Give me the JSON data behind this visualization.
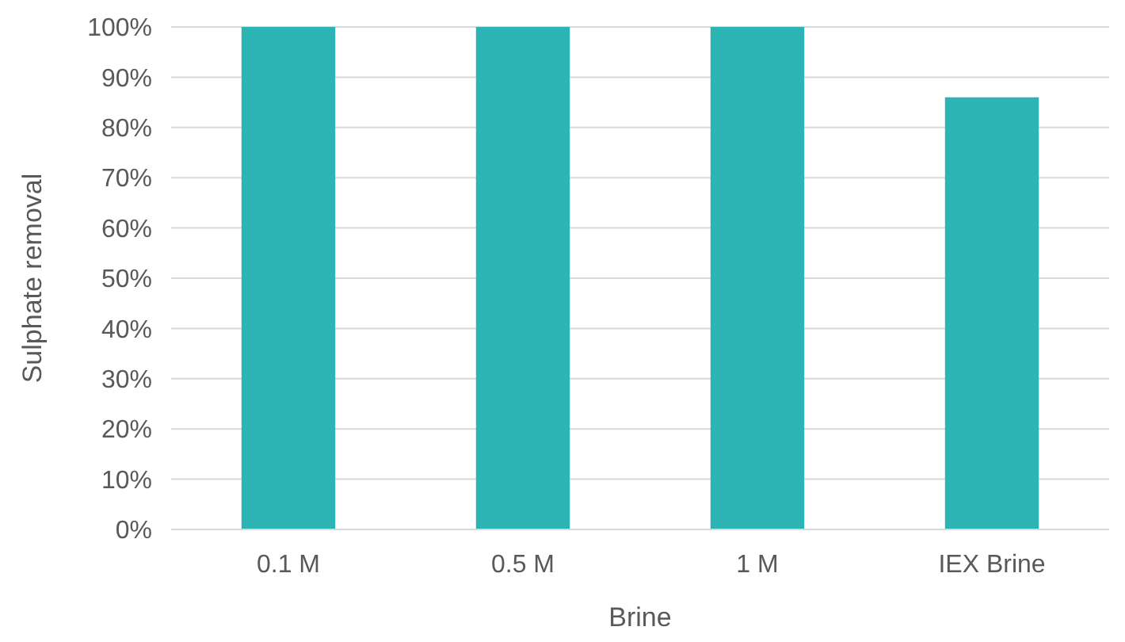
{
  "chart_data": {
    "type": "bar",
    "xlabel": "Brine",
    "ylabel": "Sulphate removal",
    "categories": [
      "0.1 M",
      "0.5 M",
      "1 M",
      "IEX Brine"
    ],
    "values": [
      100,
      100,
      100,
      86
    ],
    "color": "#2db5b5",
    "ylim": [
      0,
      100
    ],
    "yticks": [
      {
        "value": 0,
        "label": "0%"
      },
      {
        "value": 10,
        "label": "10%"
      },
      {
        "value": 20,
        "label": "20%"
      },
      {
        "value": 30,
        "label": "30%"
      },
      {
        "value": 40,
        "label": "40%"
      },
      {
        "value": 50,
        "label": "50%"
      },
      {
        "value": 60,
        "label": "60%"
      },
      {
        "value": 70,
        "label": "70%"
      },
      {
        "value": 80,
        "label": "80%"
      },
      {
        "value": 90,
        "label": "90%"
      },
      {
        "value": 100,
        "label": "100%"
      }
    ],
    "grid": "y"
  }
}
